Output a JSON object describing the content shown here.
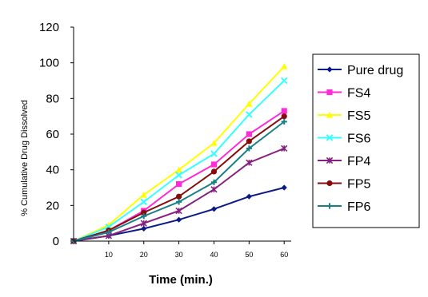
{
  "chart_data": {
    "type": "line",
    "title": "",
    "xlabel": "Time (min.)",
    "ylabel": "% Cumulative Drug Dissolved",
    "x": [
      0,
      10,
      20,
      30,
      40,
      50,
      60
    ],
    "x_tick_labels": [
      "10",
      "20",
      "30",
      "40",
      "50",
      "60"
    ],
    "xlim": [
      0,
      62
    ],
    "ylim": [
      0,
      120
    ],
    "y_ticks": [
      0,
      20,
      40,
      60,
      80,
      100,
      120
    ],
    "grid": false,
    "legend_position": "right",
    "series": [
      {
        "name": "Pure drug",
        "color": "#0b1a86",
        "marker": "diamond",
        "values": [
          0,
          3,
          7,
          12,
          18,
          25,
          30
        ]
      },
      {
        "name": "FS4",
        "color": "#ff2bd6",
        "marker": "square",
        "values": [
          0,
          6,
          17,
          32,
          43,
          60,
          73
        ]
      },
      {
        "name": "FS5",
        "color": "#ffff00",
        "marker": "triangle",
        "values": [
          0,
          9,
          26,
          40,
          55,
          77,
          98
        ]
      },
      {
        "name": "FS6",
        "color": "#38ffff",
        "marker": "x",
        "values": [
          0,
          8,
          22,
          37,
          49,
          71,
          90
        ]
      },
      {
        "name": "FP4",
        "color": "#86207f",
        "marker": "star",
        "values": [
          0,
          3,
          10,
          17,
          29,
          44,
          52
        ]
      },
      {
        "name": "FP5",
        "color": "#860c0c",
        "marker": "circle",
        "values": [
          0,
          6,
          16,
          25,
          39,
          56,
          70
        ]
      },
      {
        "name": "FP6",
        "color": "#197f86",
        "marker": "plus",
        "values": [
          0,
          5,
          14,
          22,
          33,
          52,
          67
        ]
      }
    ]
  }
}
